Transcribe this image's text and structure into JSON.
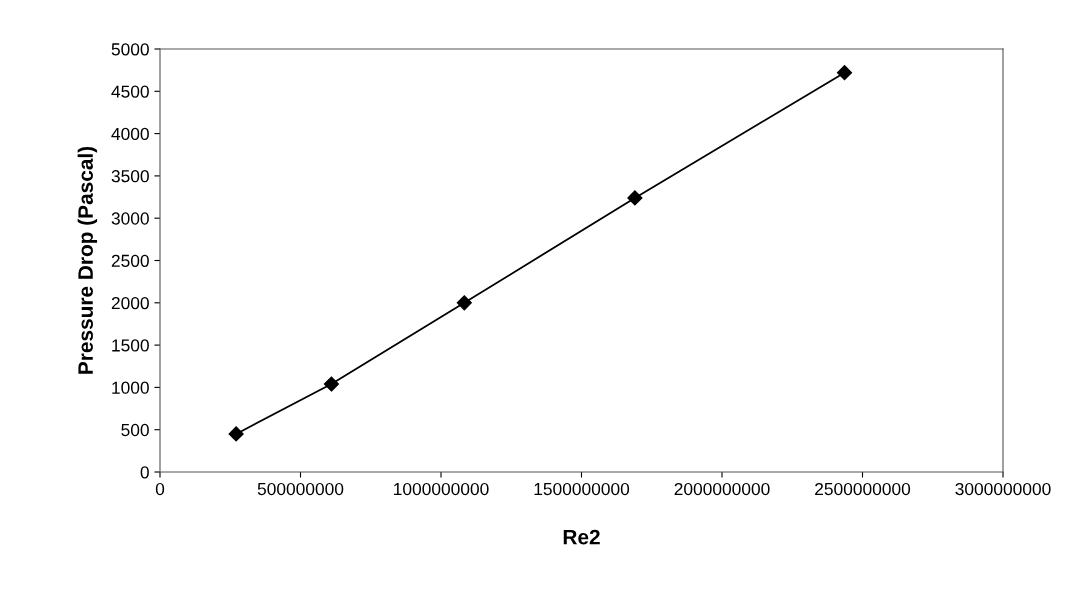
{
  "chart_data": {
    "type": "line",
    "xlabel": "Re2",
    "ylabel": "Pressure Drop (Pascal)",
    "x": [
      271000000,
      610000000,
      1083000000,
      1690000000,
      2436000000
    ],
    "series": [
      {
        "color": "#000000",
        "values": [
          450,
          1040,
          2000,
          3240,
          4720
        ]
      }
    ],
    "xlim": [
      0,
      3000000000
    ],
    "xticks": [
      0,
      500000000,
      1000000000,
      1500000000,
      2000000000,
      2500000000,
      3000000000
    ],
    "ylim": [
      0,
      5000
    ],
    "yticks": [
      0,
      500,
      1000,
      1500,
      2000,
      2500,
      3000,
      3500,
      4000,
      4500,
      5000
    ],
    "marker": "diamond",
    "line_style": "solid",
    "grid": false,
    "legend": false
  }
}
